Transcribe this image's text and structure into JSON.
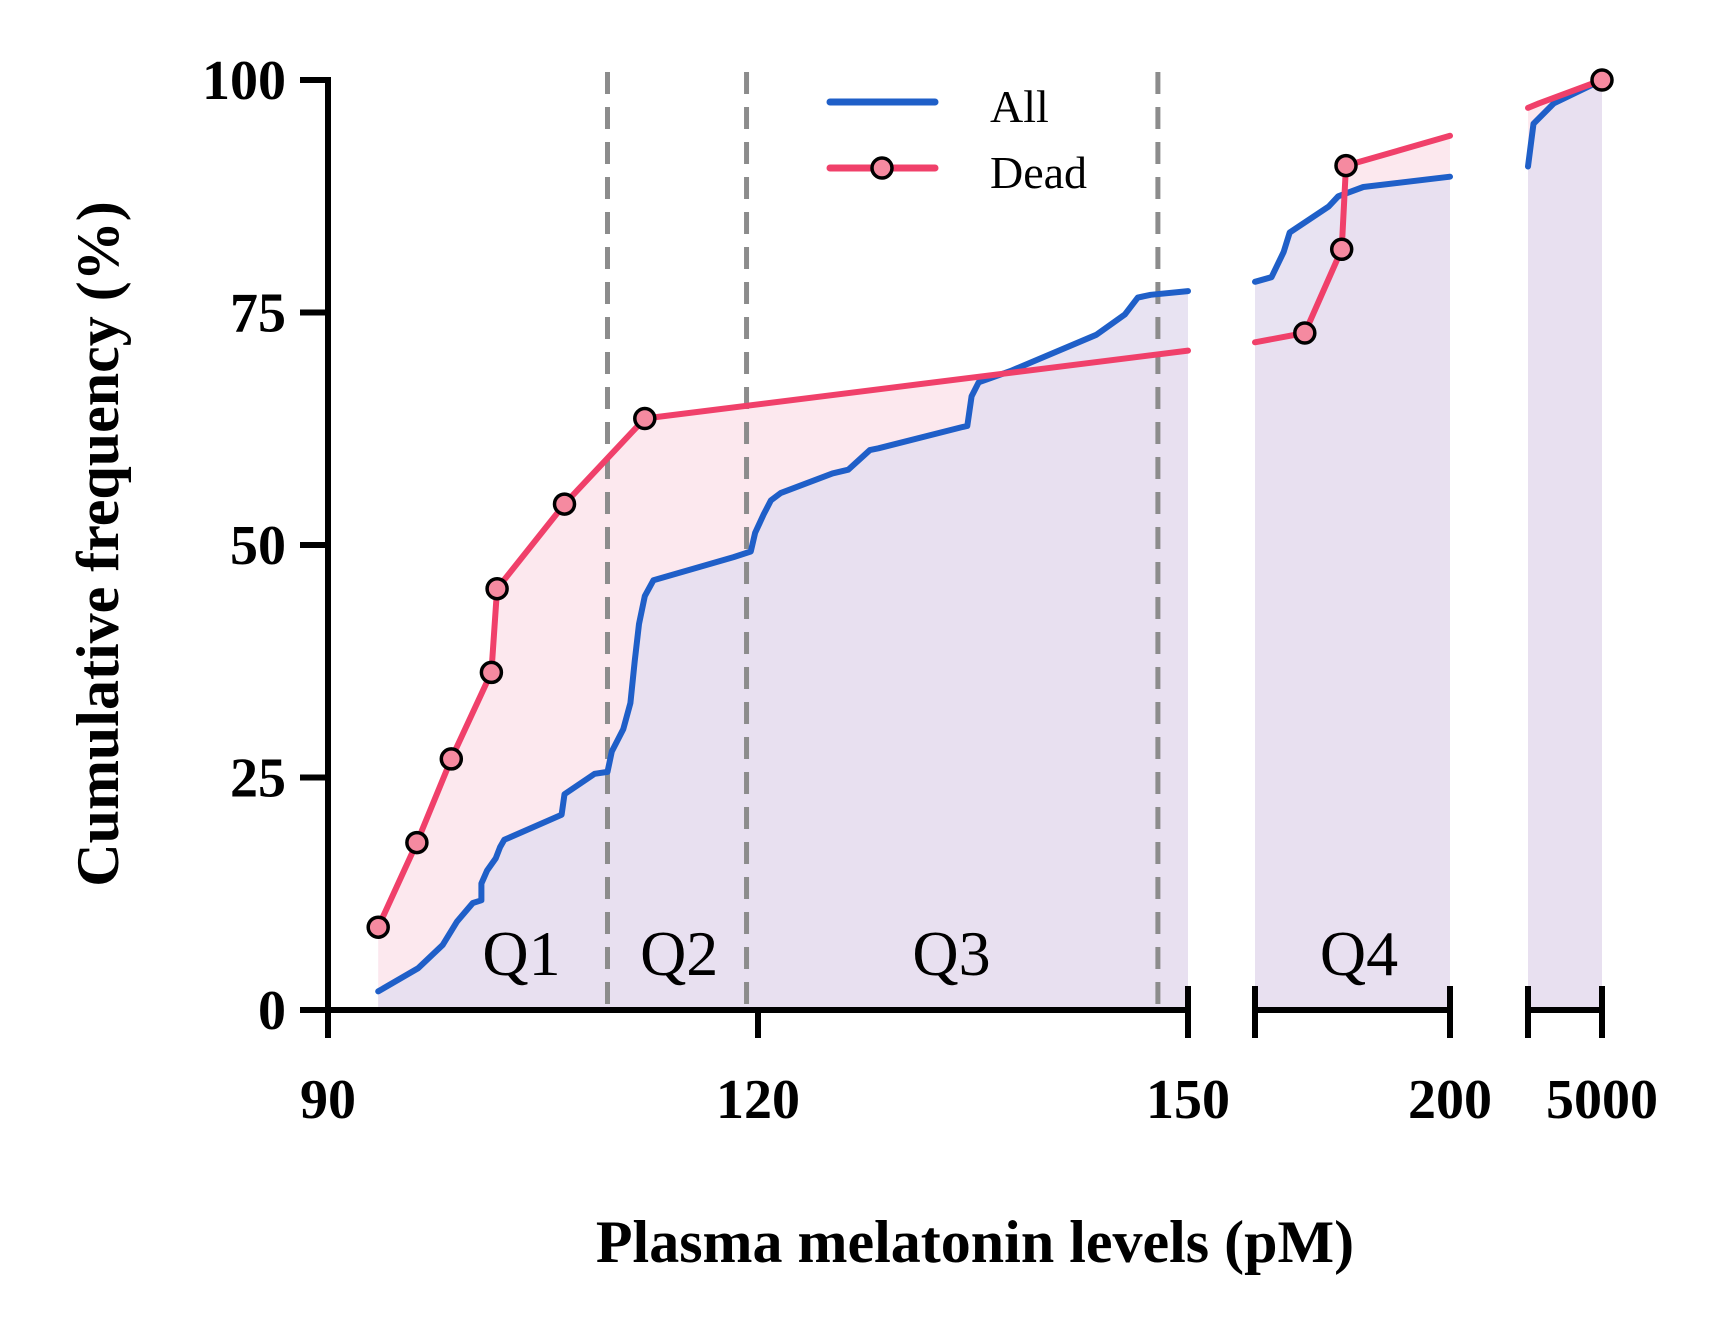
{
  "chart_data": {
    "type": "line",
    "title": "",
    "xlabel": "Plasma melatonin levels (pM)",
    "ylabel": "Cumulative frequency (%)",
    "ylim": [
      0,
      100
    ],
    "yticks": [
      "0",
      "25",
      "50",
      "75",
      "100"
    ],
    "y_tick_values": [
      0,
      25,
      50,
      75,
      100
    ],
    "x_segments": [
      {
        "range": [
          90,
          150
        ],
        "tick_labels": [
          "90",
          "120",
          "150"
        ],
        "tick_values": [
          90,
          120,
          150
        ]
      },
      {
        "range": [
          155,
          200
        ],
        "tick_labels": [
          "200"
        ],
        "tick_values": [
          200
        ]
      },
      {
        "range": [
          4800,
          5000
        ],
        "tick_labels": [
          "5000"
        ],
        "tick_values": [
          5000
        ]
      }
    ],
    "quartile_cutoffs": [
      109.5,
      119.2,
      147.9
    ],
    "quartile_labels": [
      {
        "label": "Q1",
        "x": 103.5
      },
      {
        "label": "Q2",
        "x": 114.5
      },
      {
        "label": "Q3",
        "x": 133.5
      },
      {
        "label": "Q4",
        "x": 179
      }
    ],
    "legend": [
      "All",
      "Dead"
    ],
    "colors": {
      "all": "#1f5fc8",
      "dead": "#f0406a",
      "all_fill": "#e4def0",
      "dead_fill": "#fce8ee",
      "marker_face": "#f58aa0",
      "quart_line": "#8c8c8c"
    },
    "series": [
      {
        "name": "All",
        "marker": "none",
        "segments": [
          [
            [
              93.5,
              2
            ],
            [
              96.3,
              4.5
            ],
            [
              98,
              7
            ],
            [
              99,
              9.5
            ],
            [
              100.1,
              11.5
            ],
            [
              100.7,
              11.8
            ],
            [
              100.7,
              13.6
            ],
            [
              101.1,
              15
            ],
            [
              101.7,
              16.3
            ],
            [
              102,
              17.5
            ],
            [
              102.3,
              18.3
            ],
            [
              106.3,
              21
            ],
            [
              106.5,
              23.2
            ],
            [
              108.6,
              25.4
            ],
            [
              109.5,
              25.6
            ],
            [
              109.8,
              27.8
            ],
            [
              110.6,
              30.2
            ],
            [
              111.1,
              33
            ],
            [
              111.4,
              37.5
            ],
            [
              111.7,
              41.5
            ],
            [
              112.1,
              44.5
            ],
            [
              112.7,
              46.2
            ],
            [
              118.3,
              48.7
            ],
            [
              119.5,
              49.3
            ],
            [
              119.8,
              51.3
            ],
            [
              120.4,
              53.3
            ],
            [
              120.9,
              54.8
            ],
            [
              121.6,
              55.6
            ],
            [
              125.2,
              57.7
            ],
            [
              126.3,
              58.1
            ],
            [
              127.8,
              60.2
            ],
            [
              128.4,
              60.4
            ],
            [
              134.3,
              62.7
            ],
            [
              134.6,
              62.8
            ],
            [
              134.9,
              66
            ],
            [
              135.4,
              67.5
            ],
            [
              137.6,
              68.7
            ],
            [
              143.6,
              72.6
            ],
            [
              145.6,
              74.8
            ],
            [
              146.5,
              76.6
            ],
            [
              147.4,
              76.9
            ],
            [
              150,
              77.3
            ]
          ],
          [
            [
              155,
              78.3
            ],
            [
              158.8,
              78.8
            ],
            [
              161.6,
              81.5
            ],
            [
              163,
              83.6
            ],
            [
              172,
              86.4
            ],
            [
              174.2,
              87.5
            ],
            [
              180,
              88.5
            ],
            [
              200,
              89.6
            ]
          ],
          [
            [
              4800,
              90.7
            ],
            [
              4815,
              95.3
            ],
            [
              4870,
              97.5
            ],
            [
              5000,
              100
            ]
          ]
        ]
      },
      {
        "name": "Dead",
        "marker": "circle",
        "segments": [
          [
            [
              93.5,
              8.9
            ],
            [
              96.2,
              18
            ],
            [
              98.6,
              27
            ],
            [
              101.4,
              36.3
            ],
            [
              101.8,
              45.3
            ],
            [
              106.5,
              54.4
            ],
            [
              112.1,
              63.6
            ],
            [
              150,
              70.9
            ]
          ],
          [
            [
              155,
              71.8
            ],
            [
              166.5,
              72.8
            ],
            [
              175,
              81.8
            ],
            [
              176,
              90.8
            ],
            [
              200,
              94
            ]
          ],
          [
            [
              4800,
              97
            ],
            [
              4830,
              97.5
            ],
            [
              5000,
              100
            ]
          ]
        ],
        "points": [
          [
            93.5,
            8.9
          ],
          [
            96.2,
            18
          ],
          [
            98.6,
            27
          ],
          [
            101.4,
            36.3
          ],
          [
            101.8,
            45.3
          ],
          [
            106.5,
            54.4
          ],
          [
            112.1,
            63.6
          ],
          [
            166.5,
            72.8
          ],
          [
            175,
            81.8
          ],
          [
            176,
            90.8
          ],
          [
            5000,
            100
          ]
        ]
      }
    ]
  }
}
